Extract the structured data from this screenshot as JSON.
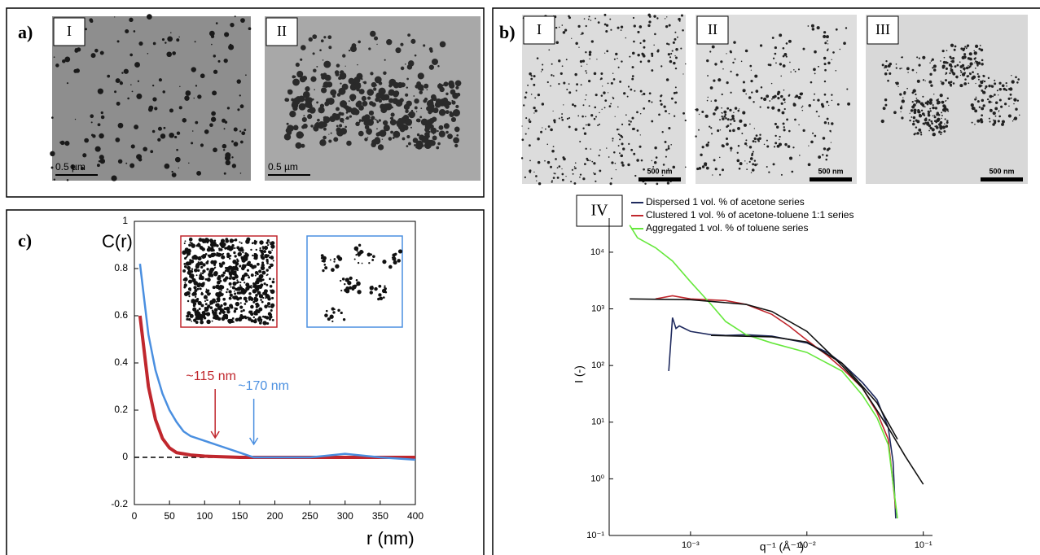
{
  "panels": {
    "a": {
      "label": "a)",
      "images": [
        {
          "label": "I",
          "scale": "0.5 µm"
        },
        {
          "label": "II",
          "scale": "0.5 µm"
        }
      ]
    },
    "b": {
      "label": "b)",
      "images": [
        {
          "label": "I",
          "scale": "500 nm"
        },
        {
          "label": "II",
          "scale": "500 nm"
        },
        {
          "label": "III",
          "scale": "500 nm"
        }
      ],
      "chart_label": "IV"
    },
    "c": {
      "label": "c)"
    }
  },
  "chart_data": [
    {
      "type": "line",
      "y_label": "C(r)",
      "x_label": "r (nm)",
      "x": [
        8,
        20,
        30,
        40,
        50,
        60,
        70,
        80,
        100,
        120,
        150,
        170,
        200,
        250,
        300,
        350,
        400
      ],
      "series": [
        {
          "color": "#c0272d",
          "values": [
            0.6,
            0.3,
            0.16,
            0.08,
            0.04,
            0.02,
            0.015,
            0.01,
            0.005,
            0.003,
            0,
            0,
            0,
            0,
            0,
            0,
            0
          ]
        },
        {
          "color": "#4a8fe0",
          "values": [
            0.82,
            0.52,
            0.37,
            0.27,
            0.2,
            0.15,
            0.11,
            0.09,
            0.07,
            0.05,
            0.02,
            0,
            0,
            0,
            0.015,
            0,
            -0.01
          ]
        }
      ],
      "annotations": [
        {
          "text": "~115 nm",
          "x": 115,
          "color": "#c0272d"
        },
        {
          "text": "~170 nm",
          "x": 170,
          "color": "#4a8fe0"
        }
      ],
      "xlim": [
        0,
        400
      ],
      "xticks": [
        0,
        50,
        100,
        150,
        200,
        250,
        300,
        350,
        400
      ],
      "ylim": [
        -0.2,
        1
      ],
      "yticks": [
        -0.2,
        0,
        0.2,
        0.4,
        0.6,
        0.8,
        1
      ]
    },
    {
      "type": "line",
      "y_label": "I (-)",
      "x_label": "q⁻¹ (Å⁻¹)",
      "log_x": true,
      "log_y": true,
      "series": [
        {
          "name": "Dispersed 1 vol. % of acetone series",
          "color": "#1f2a5e",
          "x": [
            0.00065,
            0.0007,
            0.00075,
            0.0008,
            0.001,
            0.0015,
            0.002,
            0.003,
            0.005,
            0.01,
            0.015,
            0.02,
            0.03,
            0.04,
            0.05,
            0.055,
            0.058
          ],
          "values": [
            80,
            700,
            450,
            500,
            400,
            350,
            340,
            350,
            330,
            250,
            170,
            110,
            50,
            25,
            8,
            2,
            0.2
          ]
        },
        {
          "name": "Clustered 1 vol. % of acetone-toluene 1:1 series",
          "color": "#c0272d",
          "x": [
            0.0005,
            0.0007,
            0.001,
            0.002,
            0.003,
            0.005,
            0.007,
            0.01,
            0.015,
            0.02,
            0.03,
            0.04,
            0.05,
            0.058
          ],
          "values": [
            1500,
            1700,
            1500,
            1400,
            1200,
            800,
            500,
            280,
            150,
            90,
            40,
            15,
            5,
            0.3
          ]
        },
        {
          "name": "Aggregated 1 vol. % of toluene series",
          "color": "#66e83c",
          "x": [
            0.0003,
            0.00035,
            0.0005,
            0.0007,
            0.001,
            0.0015,
            0.002,
            0.003,
            0.005,
            0.01,
            0.02,
            0.03,
            0.04,
            0.05,
            0.06
          ],
          "values": [
            30000,
            18000,
            12000,
            7000,
            3000,
            1200,
            600,
            350,
            250,
            170,
            80,
            30,
            12,
            4,
            0.2
          ]
        },
        {
          "color": "#111111",
          "x": [
            0.0003,
            0.001,
            0.003,
            0.005,
            0.01,
            0.02,
            0.03,
            0.05,
            0.07,
            0.1
          ],
          "values": [
            1500,
            1450,
            1200,
            900,
            400,
            100,
            40,
            8,
            2.5,
            0.8
          ]
        },
        {
          "color": "#111111",
          "x": [
            0.0015,
            0.005,
            0.01,
            0.02,
            0.04,
            0.06
          ],
          "values": [
            340,
            320,
            260,
            110,
            22,
            5
          ]
        }
      ],
      "xlim": [
        0.0002,
        0.12
      ],
      "xticks": [
        {
          "value": 0.001,
          "label": "10⁻³"
        },
        {
          "value": 0.01,
          "label": "10⁻²"
        },
        {
          "value": 0.1,
          "label": "10⁻¹"
        }
      ],
      "ylim": [
        0.1,
        40000
      ],
      "yticks": [
        {
          "value": 0.1,
          "label": "10⁻¹"
        },
        {
          "value": 1,
          "label": "10⁰"
        },
        {
          "value": 10,
          "label": "10¹"
        },
        {
          "value": 100,
          "label": "10²"
        },
        {
          "value": 1000,
          "label": "10³"
        },
        {
          "value": 10000,
          "label": "10⁴"
        }
      ]
    }
  ]
}
